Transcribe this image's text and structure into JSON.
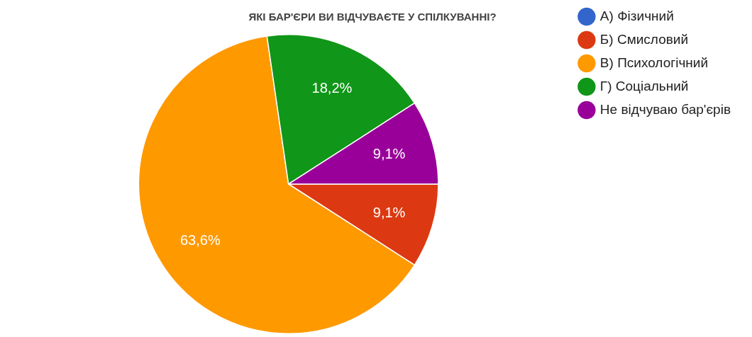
{
  "chart_data": {
    "type": "pie",
    "title": "ЯКІ БАР'ЄРИ ВИ ВІДЧУВАЄТЕ У СПІЛКУВАННІ?",
    "categories": [
      "А) Фізичний",
      "Б) Смисловий",
      "В) Психологічний",
      "Г) Соціальний",
      "Не відчуваю бар'єрів"
    ],
    "values": [
      0,
      9.1,
      63.6,
      18.2,
      9.1
    ],
    "value_labels": [
      null,
      "9,1%",
      "63,6%",
      "18,2%",
      "9,1%"
    ],
    "colors": [
      "#3366cc",
      "#dc3912",
      "#ff9900",
      "#109618",
      "#990099"
    ],
    "legend": "top right"
  }
}
